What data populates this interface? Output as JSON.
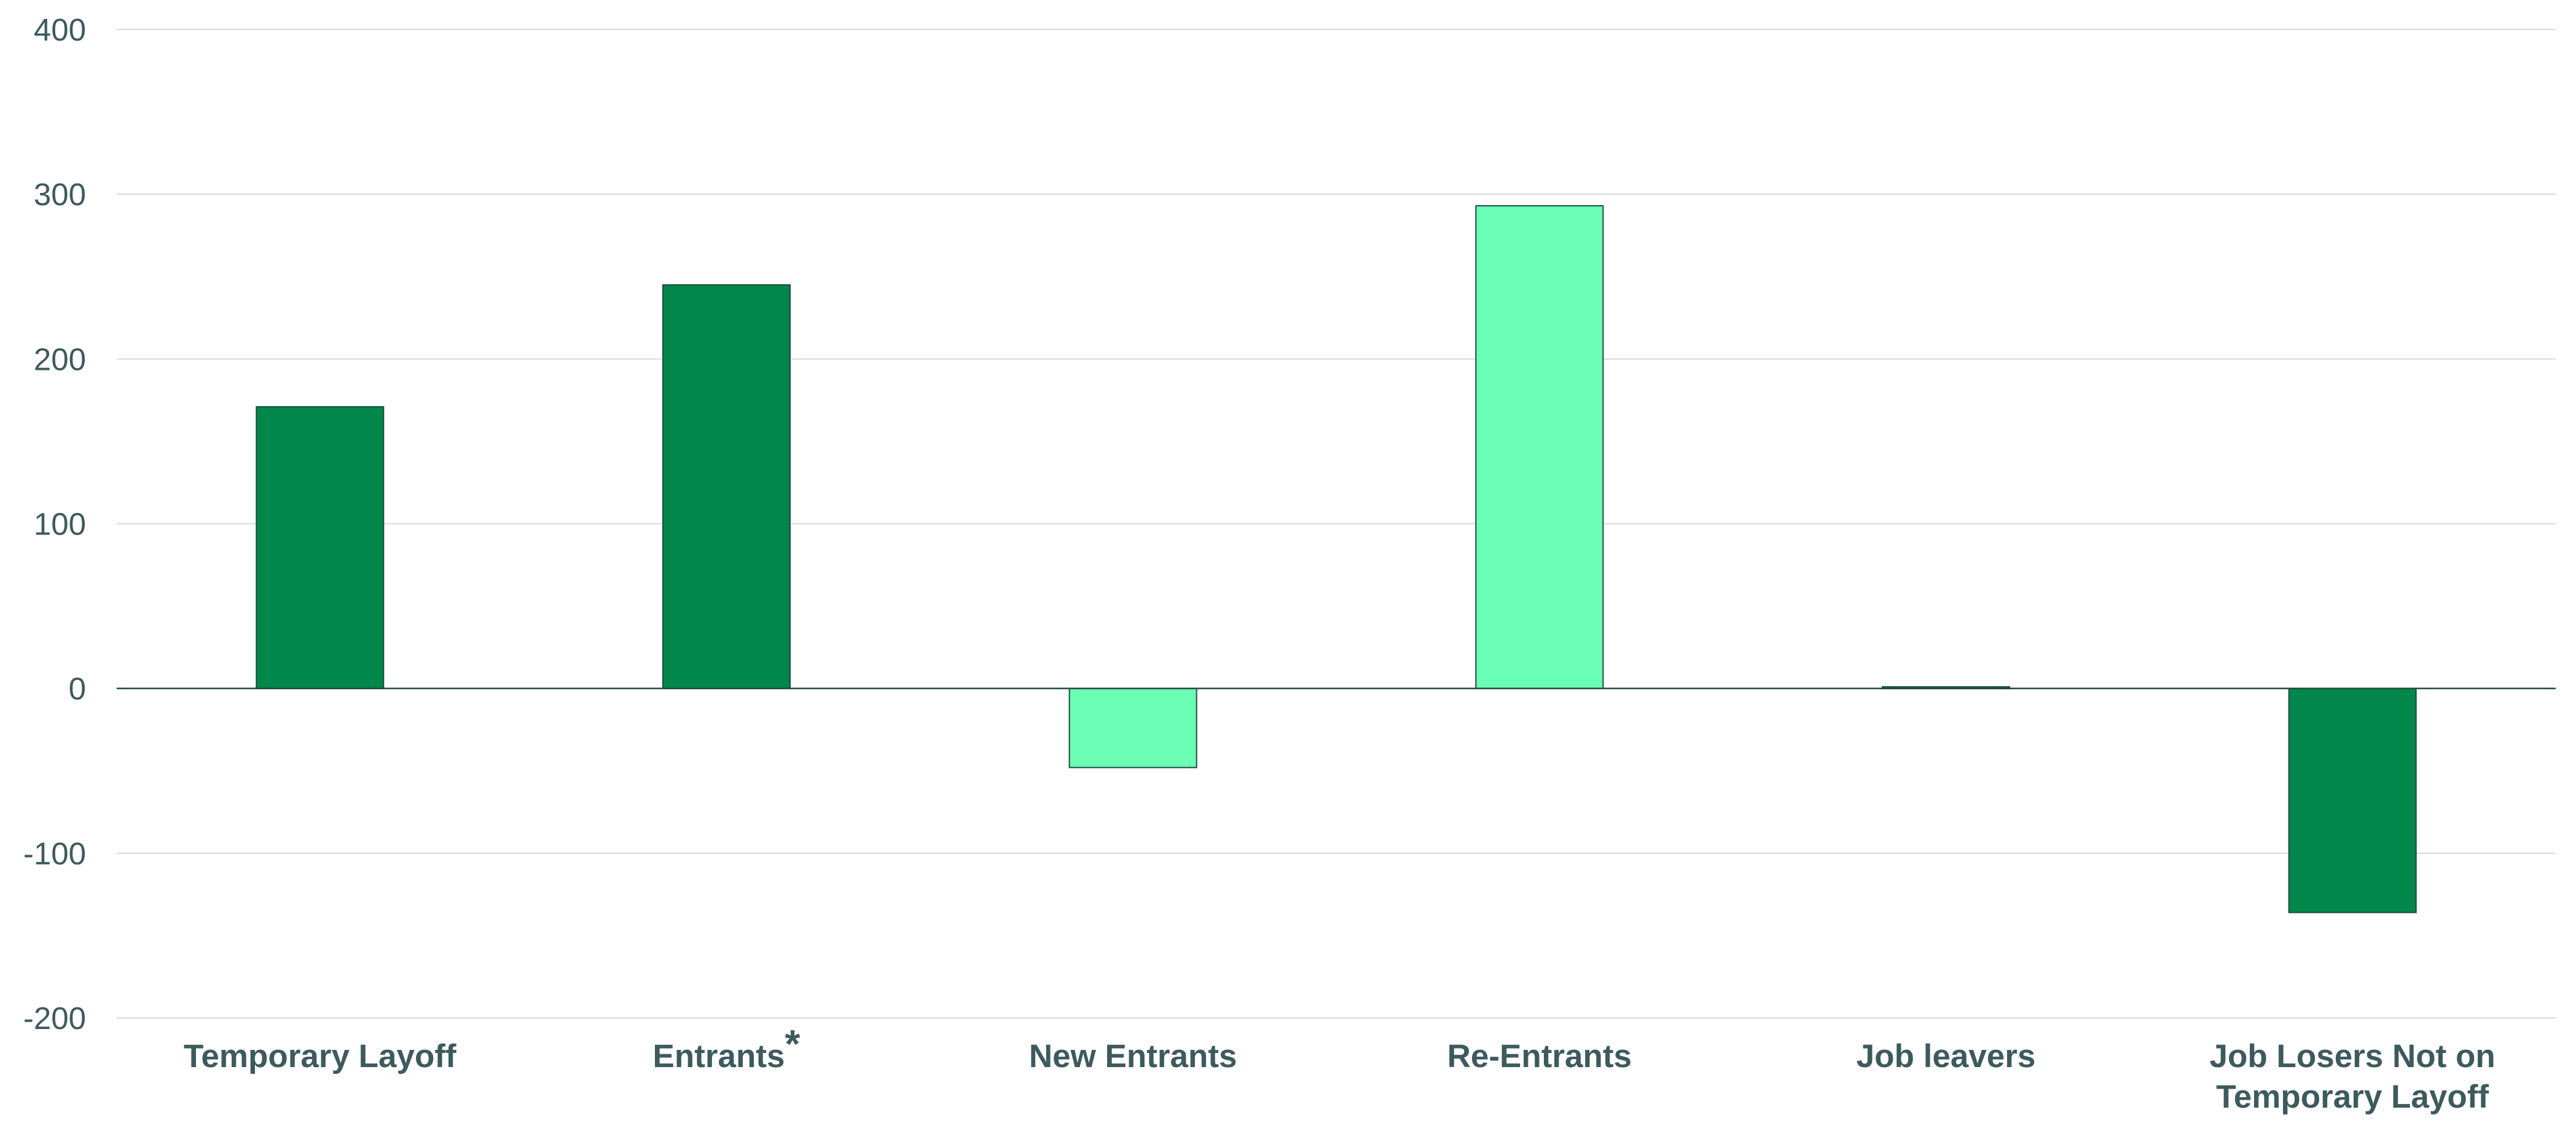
{
  "chart_data": {
    "type": "bar",
    "categories": [
      "Temporary Layoff",
      "Entrants*",
      "New Entrants",
      "Re-Entrants",
      "Job leavers",
      "Job Losers Not on Temporary Layoff"
    ],
    "values": [
      171,
      245,
      -48,
      293,
      1,
      -136
    ],
    "bar_colors": [
      "#02874a",
      "#02874a",
      "#6affb4",
      "#6affb4",
      "#02874a",
      "#02874a"
    ],
    "ylim": [
      -200,
      400
    ],
    "yticks": [
      400,
      300,
      200,
      100,
      0,
      -100,
      -200
    ],
    "title": "",
    "xlabel": "",
    "ylabel": "",
    "grid": true,
    "legend": "none"
  },
  "colors": {
    "dark_green": "#02874a",
    "light_green": "#6affb4",
    "label_text": "#3d5a5e",
    "gridline": "#d9d9d9",
    "bar_outline": "#1d4a40"
  }
}
